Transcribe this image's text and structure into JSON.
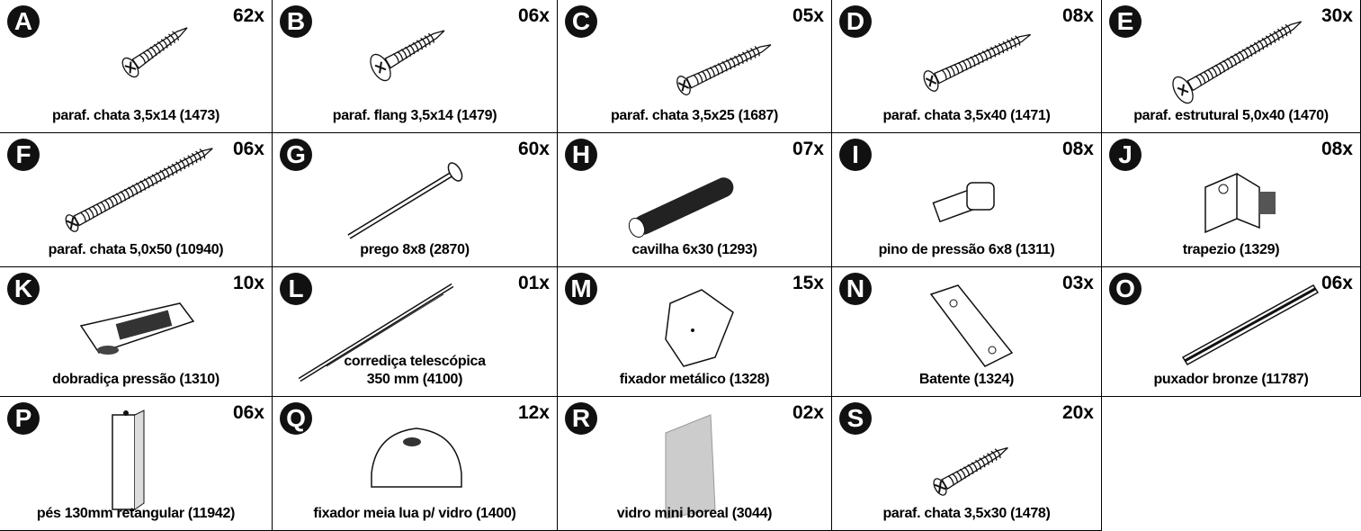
{
  "items": [
    {
      "letter": "A",
      "qty": "62x",
      "label": [
        "paraf. chata 3,5x14 (1473)"
      ]
    },
    {
      "letter": "B",
      "qty": "06x",
      "label": [
        "paraf. flang 3,5x14 (1479)"
      ]
    },
    {
      "letter": "C",
      "qty": "05x",
      "label": [
        "paraf. chata 3,5x25 (1687)"
      ]
    },
    {
      "letter": "D",
      "qty": "08x",
      "label": [
        "paraf. chata 3,5x40 (1471)"
      ]
    },
    {
      "letter": "E",
      "qty": "30x",
      "label": [
        "paraf. estrutural 5,0x40 (1470)"
      ]
    },
    {
      "letter": "F",
      "qty": "06x",
      "label": [
        "paraf. chata 5,0x50 (10940)"
      ]
    },
    {
      "letter": "G",
      "qty": "60x",
      "label": [
        "prego 8x8 (2870)"
      ]
    },
    {
      "letter": "H",
      "qty": "07x",
      "label": [
        "cavilha 6x30 (1293)"
      ]
    },
    {
      "letter": "I",
      "qty": "08x",
      "label": [
        "pino de pressão 6x8 (1311)"
      ]
    },
    {
      "letter": "J",
      "qty": "08x",
      "label": [
        "trapezio (1329)"
      ]
    },
    {
      "letter": "K",
      "qty": "10x",
      "label": [
        "dobradiça pressão  (1310)"
      ]
    },
    {
      "letter": "L",
      "qty": "01x",
      "label": [
        "corrediça telescópica",
        "350 mm (4100)"
      ]
    },
    {
      "letter": "M",
      "qty": "15x",
      "label": [
        "fixador metálico (1328)"
      ]
    },
    {
      "letter": "N",
      "qty": "03x",
      "label": [
        "Batente (1324)"
      ]
    },
    {
      "letter": "O",
      "qty": "06x",
      "label": [
        "puxador bronze (11787)"
      ]
    },
    {
      "letter": "P",
      "qty": "06x",
      "label": [
        "pés 130mm retangular (11942)"
      ]
    },
    {
      "letter": "Q",
      "qty": "12x",
      "label": [
        "fixador meia lua p/ vidro (1400)"
      ]
    },
    {
      "letter": "R",
      "qty": "02x",
      "label": [
        "vidro mini boreal (3044)"
      ]
    },
    {
      "letter": "S",
      "qty": "20x",
      "label": [
        "paraf. chata 3,5x30 (1478)"
      ]
    }
  ]
}
